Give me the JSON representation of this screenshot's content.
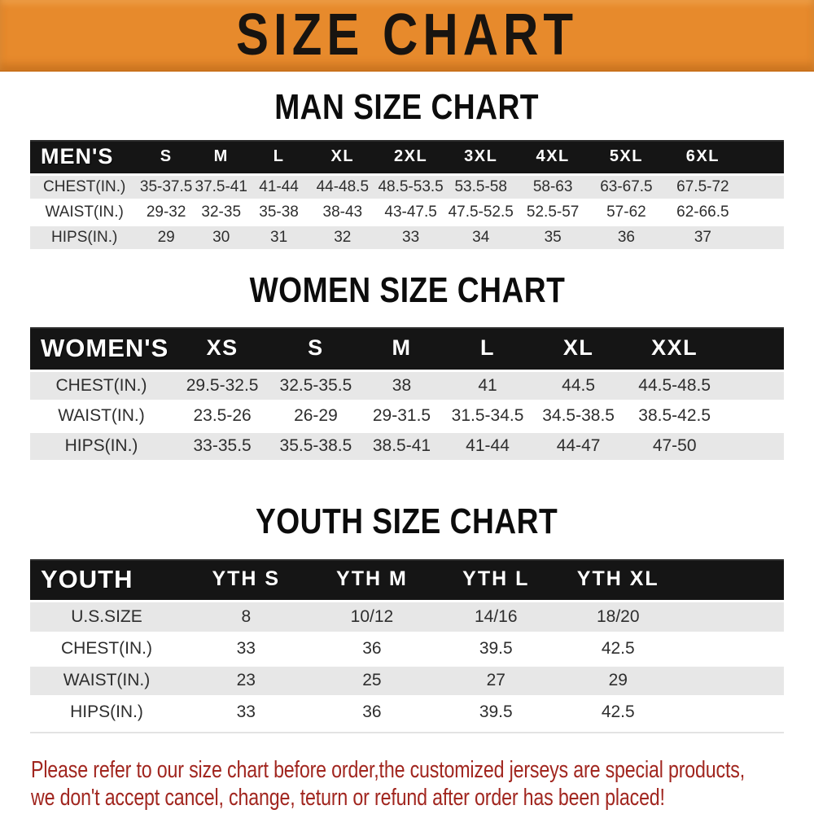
{
  "banner": {
    "title": "SIZE CHART"
  },
  "sections": [
    {
      "id": "men",
      "title": "MAN SIZE CHART",
      "header_label": "MEN'S",
      "columns": [
        "S",
        "M",
        "L",
        "XL",
        "2XL",
        "3XL",
        "4XL",
        "5XL",
        "6XL"
      ],
      "rows": [
        {
          "label": "CHEST(IN.)",
          "values": [
            "35-37.5",
            "37.5-41",
            "41-44",
            "44-48.5",
            "48.5-53.5",
            "53.5-58",
            "58-63",
            "63-67.5",
            "67.5-72"
          ]
        },
        {
          "label": "WAIST(IN.)",
          "values": [
            "29-32",
            "32-35",
            "35-38",
            "38-43",
            "43-47.5",
            "47.5-52.5",
            "52.5-57",
            "57-62",
            "62-66.5"
          ]
        },
        {
          "label": "HIPS(IN.)",
          "values": [
            "29",
            "30",
            "31",
            "32",
            "33",
            "34",
            "35",
            "36",
            "37"
          ]
        }
      ]
    },
    {
      "id": "women",
      "title": "WOMEN SIZE CHART",
      "header_label": "WOMEN'S",
      "columns": [
        "XS",
        "S",
        "M",
        "L",
        "XL",
        "XXL"
      ],
      "rows": [
        {
          "label": "CHEST(IN.)",
          "values": [
            "29.5-32.5",
            "32.5-35.5",
            "38",
            "41",
            "44.5",
            "44.5-48.5"
          ]
        },
        {
          "label": "WAIST(IN.)",
          "values": [
            "23.5-26",
            "26-29",
            "29-31.5",
            "31.5-34.5",
            "34.5-38.5",
            "38.5-42.5"
          ]
        },
        {
          "label": "HIPS(IN.)",
          "values": [
            "33-35.5",
            "35.5-38.5",
            "38.5-41",
            "41-44",
            "44-47",
            "47-50"
          ]
        }
      ]
    },
    {
      "id": "youth",
      "title": "YOUTH SIZE CHART",
      "header_label": "YOUTH",
      "columns": [
        "YTH S",
        "YTH M",
        "YTH L",
        "YTH XL"
      ],
      "rows": [
        {
          "label": "U.S.SIZE",
          "values": [
            "8",
            "10/12",
            "14/16",
            "18/20"
          ]
        },
        {
          "label": "CHEST(IN.)",
          "values": [
            "33",
            "36",
            "39.5",
            "42.5"
          ]
        },
        {
          "label": "WAIST(IN.)",
          "values": [
            "23",
            "25",
            "27",
            "29"
          ]
        },
        {
          "label": "HIPS(IN.)",
          "values": [
            "33",
            "36",
            "39.5",
            "42.5"
          ]
        }
      ]
    }
  ],
  "footer": {
    "line1": "Please refer to our size chart before order,the customized jerseys are special products,",
    "line2": "we don't accept cancel, change, teturn or refund after order has been placed!"
  },
  "colors": {
    "banner_bg": "#e78a2c",
    "table_header_bg": "#151515",
    "table_header_text": "#ffffff",
    "row_shade": "#e7e7e7",
    "footer_text": "#a1261f"
  }
}
